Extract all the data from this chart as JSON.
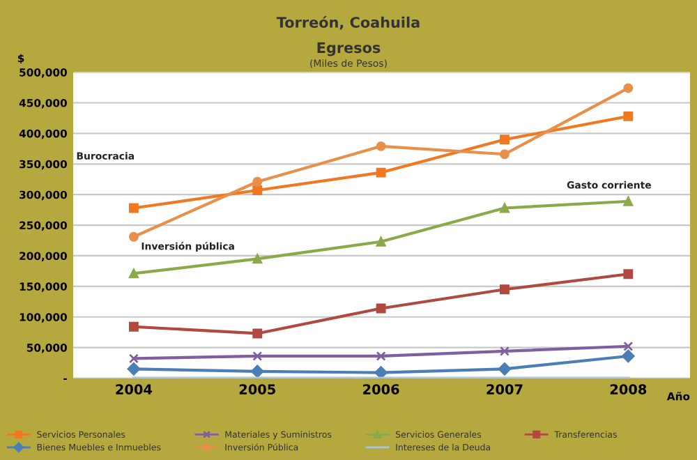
{
  "chart_data": {
    "type": "line",
    "title": "Torreón, Coahuila",
    "subtitle": "Egresos",
    "xlabel": "Año",
    "ylabel": "$",
    "annotations": [
      "(Miles de Pesos)",
      "Burocracia",
      "Inversión pública",
      "Gasto corriente"
    ],
    "categories": [
      "2004",
      "2005",
      "2006",
      "2007",
      "2008"
    ],
    "ylim": [
      0,
      500000
    ],
    "yticks": [
      {
        "value": 0,
        "label": "-"
      },
      {
        "value": 50000,
        "label": "50,000"
      },
      {
        "value": 100000,
        "label": "100,000"
      },
      {
        "value": 150000,
        "label": "150,000"
      },
      {
        "value": 200000,
        "label": "200,000"
      },
      {
        "value": 250000,
        "label": "250,000"
      },
      {
        "value": 300000,
        "label": "300,000"
      },
      {
        "value": 350000,
        "label": "350,000"
      },
      {
        "value": 400000,
        "label": "400,000"
      },
      {
        "value": 450000,
        "label": "450,000"
      },
      {
        "value": 500000,
        "label": "500,000"
      }
    ],
    "grid": "y",
    "legend": "bottom",
    "series": [
      {
        "name": "Servicios Personales",
        "color": "#f07820",
        "marker": "square",
        "values": [
          278000,
          307000,
          336000,
          390000,
          428000
        ]
      },
      {
        "name": "Materiales y Suministros",
        "color": "#7f5f9f",
        "marker": "cross",
        "values": [
          32000,
          36000,
          36000,
          44000,
          52000
        ]
      },
      {
        "name": "Servicios Generales",
        "color": "#8aaa4a",
        "marker": "triangle",
        "values": [
          171000,
          195000,
          223000,
          278000,
          289000
        ]
      },
      {
        "name": "Transferencias",
        "color": "#b04a40",
        "marker": "square",
        "values": [
          84000,
          73000,
          114000,
          145000,
          170000
        ]
      },
      {
        "name": "Bienes Muebles e Inmuebles",
        "color": "#4a7eb5",
        "marker": "diamond",
        "values": [
          15000,
          11000,
          9000,
          15000,
          36000
        ]
      },
      {
        "name": "Inversión Pública",
        "color": "#e8904a",
        "marker": "circle",
        "values": [
          231000,
          321000,
          379000,
          366000,
          474000
        ]
      },
      {
        "name": "Intereses de la Deuda",
        "color": "#a8c4e0",
        "marker": "none",
        "values": [
          0,
          0,
          0,
          0,
          0
        ]
      }
    ]
  }
}
